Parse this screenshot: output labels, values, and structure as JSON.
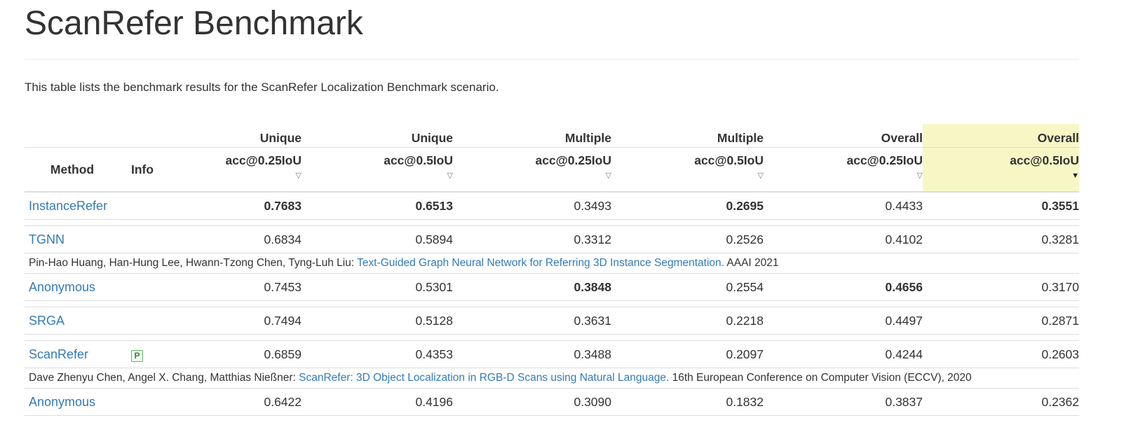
{
  "page": {
    "title": "ScanRefer Benchmark",
    "description": "This table lists the benchmark results for the ScanRefer Localization Benchmark scenario."
  },
  "table": {
    "col_method": "Method",
    "col_info": "Info",
    "metrics": [
      {
        "top": "Unique",
        "sub": "acc@0.25IoU"
      },
      {
        "top": "Unique",
        "sub": "acc@0.5IoU"
      },
      {
        "top": "Multiple",
        "sub": "acc@0.25IoU"
      },
      {
        "top": "Multiple",
        "sub": "acc@0.5IoU"
      },
      {
        "top": "Overall",
        "sub": "acc@0.25IoU"
      },
      {
        "top": "Overall",
        "sub": "acc@0.5IoU"
      }
    ],
    "sort_icon": "triangle-down-icon",
    "rows": [
      {
        "method": "InstanceRefer",
        "info": "",
        "values": [
          "0.7683",
          "0.6513",
          "0.3493",
          "0.2695",
          "0.4433",
          "0.3551"
        ],
        "bold": [
          true,
          true,
          false,
          true,
          false,
          true
        ]
      },
      {
        "method": "TGNN",
        "info": "",
        "values": [
          "0.6834",
          "0.5894",
          "0.3312",
          "0.2526",
          "0.4102",
          "0.3281"
        ],
        "bold": [
          false,
          false,
          false,
          false,
          false,
          false
        ],
        "ref": {
          "authors": "Pin-Hao Huang, Han-Hung Lee, Hwann-Tzong Chen, Tyng-Luh Liu: ",
          "paper": "Text-Guided Graph Neural Network for Referring 3D Instance Segmentation.",
          "venue": " AAAI 2021"
        }
      },
      {
        "method": "Anonymous",
        "info": "",
        "values": [
          "0.7453",
          "0.5301",
          "0.3848",
          "0.2554",
          "0.4656",
          "0.3170"
        ],
        "bold": [
          false,
          false,
          true,
          false,
          true,
          false
        ]
      },
      {
        "method": "SRGA",
        "info": "",
        "values": [
          "0.7494",
          "0.5128",
          "0.3631",
          "0.2218",
          "0.4497",
          "0.2871"
        ],
        "bold": [
          false,
          false,
          false,
          false,
          false,
          false
        ]
      },
      {
        "method": "ScanRefer",
        "info": "P",
        "values": [
          "0.6859",
          "0.4353",
          "0.3488",
          "0.2097",
          "0.4244",
          "0.2603"
        ],
        "bold": [
          false,
          false,
          false,
          false,
          false,
          false
        ],
        "ref": {
          "authors": "Dave Zhenyu Chen, Angel X. Chang, Matthias Nießner: ",
          "paper": "ScanRefer: 3D Object Localization in RGB-D Scans using Natural Language.",
          "venue": " 16th European Conference on Computer Vision (ECCV), 2020"
        }
      },
      {
        "method": "Anonymous",
        "info": "",
        "values": [
          "0.6422",
          "0.4196",
          "0.3090",
          "0.1832",
          "0.3837",
          "0.2362"
        ],
        "bold": [
          false,
          false,
          false,
          false,
          false,
          false
        ]
      }
    ]
  }
}
